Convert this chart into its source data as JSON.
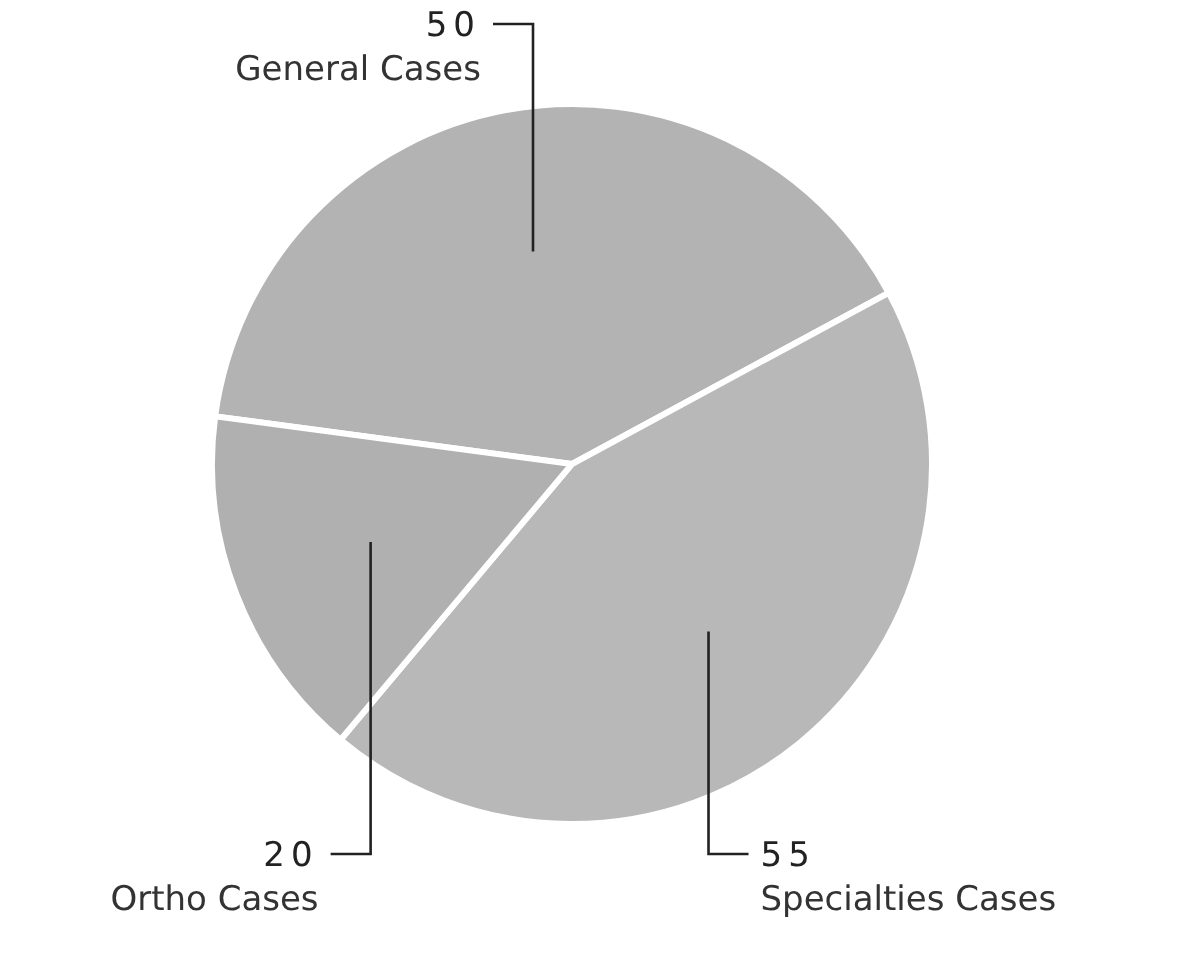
{
  "chart_data": {
    "type": "pie",
    "categories": [
      "General Cases",
      "Specialties Cases",
      "Ortho Cases"
    ],
    "values": [
      50,
      55,
      20
    ],
    "colors": [
      "#b3b3b3",
      "#b8b8b8",
      "#b0b0b0"
    ],
    "data_labels": true
  }
}
